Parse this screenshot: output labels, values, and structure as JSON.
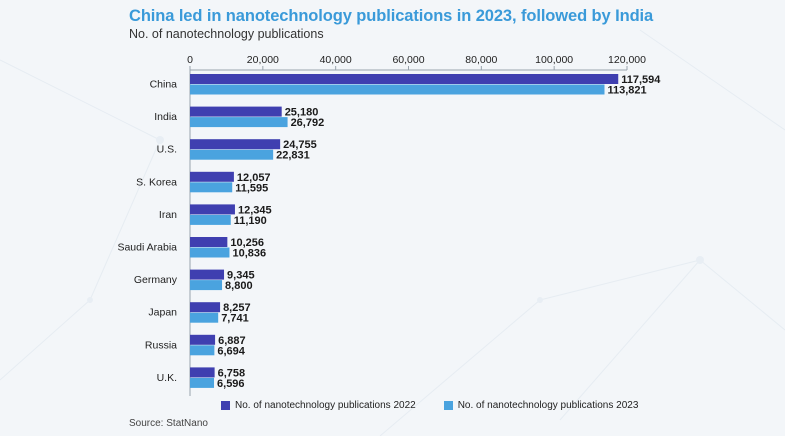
{
  "title": "China led in nanotechnology publications in 2023, followed by India",
  "subtitle": "No. of nanotechnology publications",
  "source": "Source: StatNano",
  "colors": {
    "series_2022": "#3f3fb0",
    "series_2023": "#4aa3df",
    "title": "#3a9ad9",
    "background": "#f3f6f9"
  },
  "chart_data": {
    "type": "bar",
    "orientation": "horizontal",
    "title": "China led in nanotechnology publications in 2023, followed by India",
    "subtitle": "No. of nanotechnology publications",
    "categories": [
      "China",
      "India",
      "U.S.",
      "S. Korea",
      "Iran",
      "Saudi Arabia",
      "Germany",
      "Japan",
      "Russia",
      "U.K."
    ],
    "series": [
      {
        "name": "No. of nanotechnology publications 2022",
        "values": [
          117594,
          25180,
          24755,
          12057,
          12345,
          10256,
          9345,
          8257,
          6887,
          6758
        ]
      },
      {
        "name": "No. of nanotechnology publications 2023",
        "values": [
          113821,
          26792,
          22831,
          11595,
          11190,
          10836,
          8800,
          7741,
          6694,
          6596
        ]
      }
    ],
    "value_labels": [
      [
        "117,594",
        "25,180",
        "24,755",
        "12,057",
        "12,345",
        "10,256",
        "9,345",
        "8,257",
        "6,887",
        "6,758"
      ],
      [
        "113,821",
        "26,792",
        "22,831",
        "11,595",
        "11,190",
        "10,836",
        "8,800",
        "7,741",
        "6,694",
        "6,596"
      ]
    ],
    "xlim": [
      0,
      120000
    ],
    "x_ticks": [
      0,
      20000,
      40000,
      60000,
      80000,
      100000,
      120000
    ],
    "x_tick_labels": [
      "0",
      "20,000",
      "40,000",
      "60,000",
      "80,000",
      "100,000",
      "120,000"
    ],
    "axis_position": "top",
    "grid": false,
    "legend_position": "bottom"
  }
}
